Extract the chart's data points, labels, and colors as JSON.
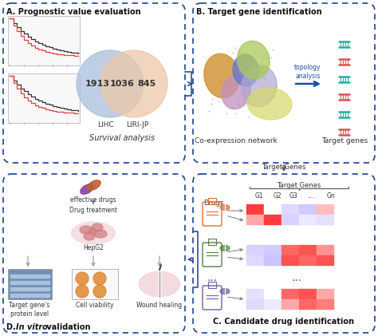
{
  "bg_color": "#ffffff",
  "border_color": "#2a4fa0",
  "panel_A": {
    "label": "A. Prognostic value evaluation",
    "sublabel": "Survival analysis",
    "venn_left": "1913",
    "venn_overlap": "1036",
    "venn_right": "845",
    "venn_left_label": "LIHC",
    "venn_right_label": "LIRI-JP",
    "venn_left_color": "#a8bedd",
    "venn_right_color": "#edc8a8",
    "km_box_color": "#f5f5f5",
    "km_line1": "#444444",
    "km_line2": "#e04444"
  },
  "panel_B": {
    "label": "B. Target gene identification",
    "sublabel1": "Co-expression network",
    "sublabel2": "Target genes",
    "arrow_text": "topology\nanalysis",
    "arrow_color": "#1a4fa0",
    "blob_colors": [
      "#e0a030",
      "#c898c8",
      "#7878c8",
      "#b0a0c8",
      "#a0c060",
      "#d0d080"
    ],
    "gene_colors_alt": [
      "#20b0a0",
      "#e05050"
    ]
  },
  "panel_C": {
    "label": "C. Candidate drug identification",
    "target_genes_label": "Target Genes",
    "drugs_label": "Drugs",
    "col_labels": [
      "G1",
      "G2",
      "G3",
      "....",
      "Gn"
    ],
    "matrix1": [
      [
        0.95,
        0.5,
        0.25,
        0.15,
        0.65
      ],
      [
        0.7,
        0.95,
        0.2,
        0.35,
        0.3
      ]
    ],
    "matrix2": [
      [
        0.2,
        0.15,
        0.85,
        0.9,
        0.75
      ],
      [
        0.25,
        0.1,
        0.9,
        0.85,
        0.9
      ]
    ],
    "matrix3": [
      [
        0.3,
        0.5,
        0.85,
        0.9,
        0.7
      ],
      [
        0.25,
        0.35,
        0.7,
        0.85,
        0.8
      ]
    ],
    "drug1_color": "#e07030",
    "drug2_color": "#508040",
    "drug3_color": "#7060a0"
  },
  "panel_D": {
    "label_d": "D. ",
    "label_italic": "In vitro",
    "label_rest": " validation",
    "sublabels": [
      "Target gene's\nprotein level",
      "Cell viability",
      "Wound healing"
    ],
    "drug_label": "effective drugs",
    "treatment_label": "Drug treatment",
    "hepg2_label": "HepG2"
  }
}
